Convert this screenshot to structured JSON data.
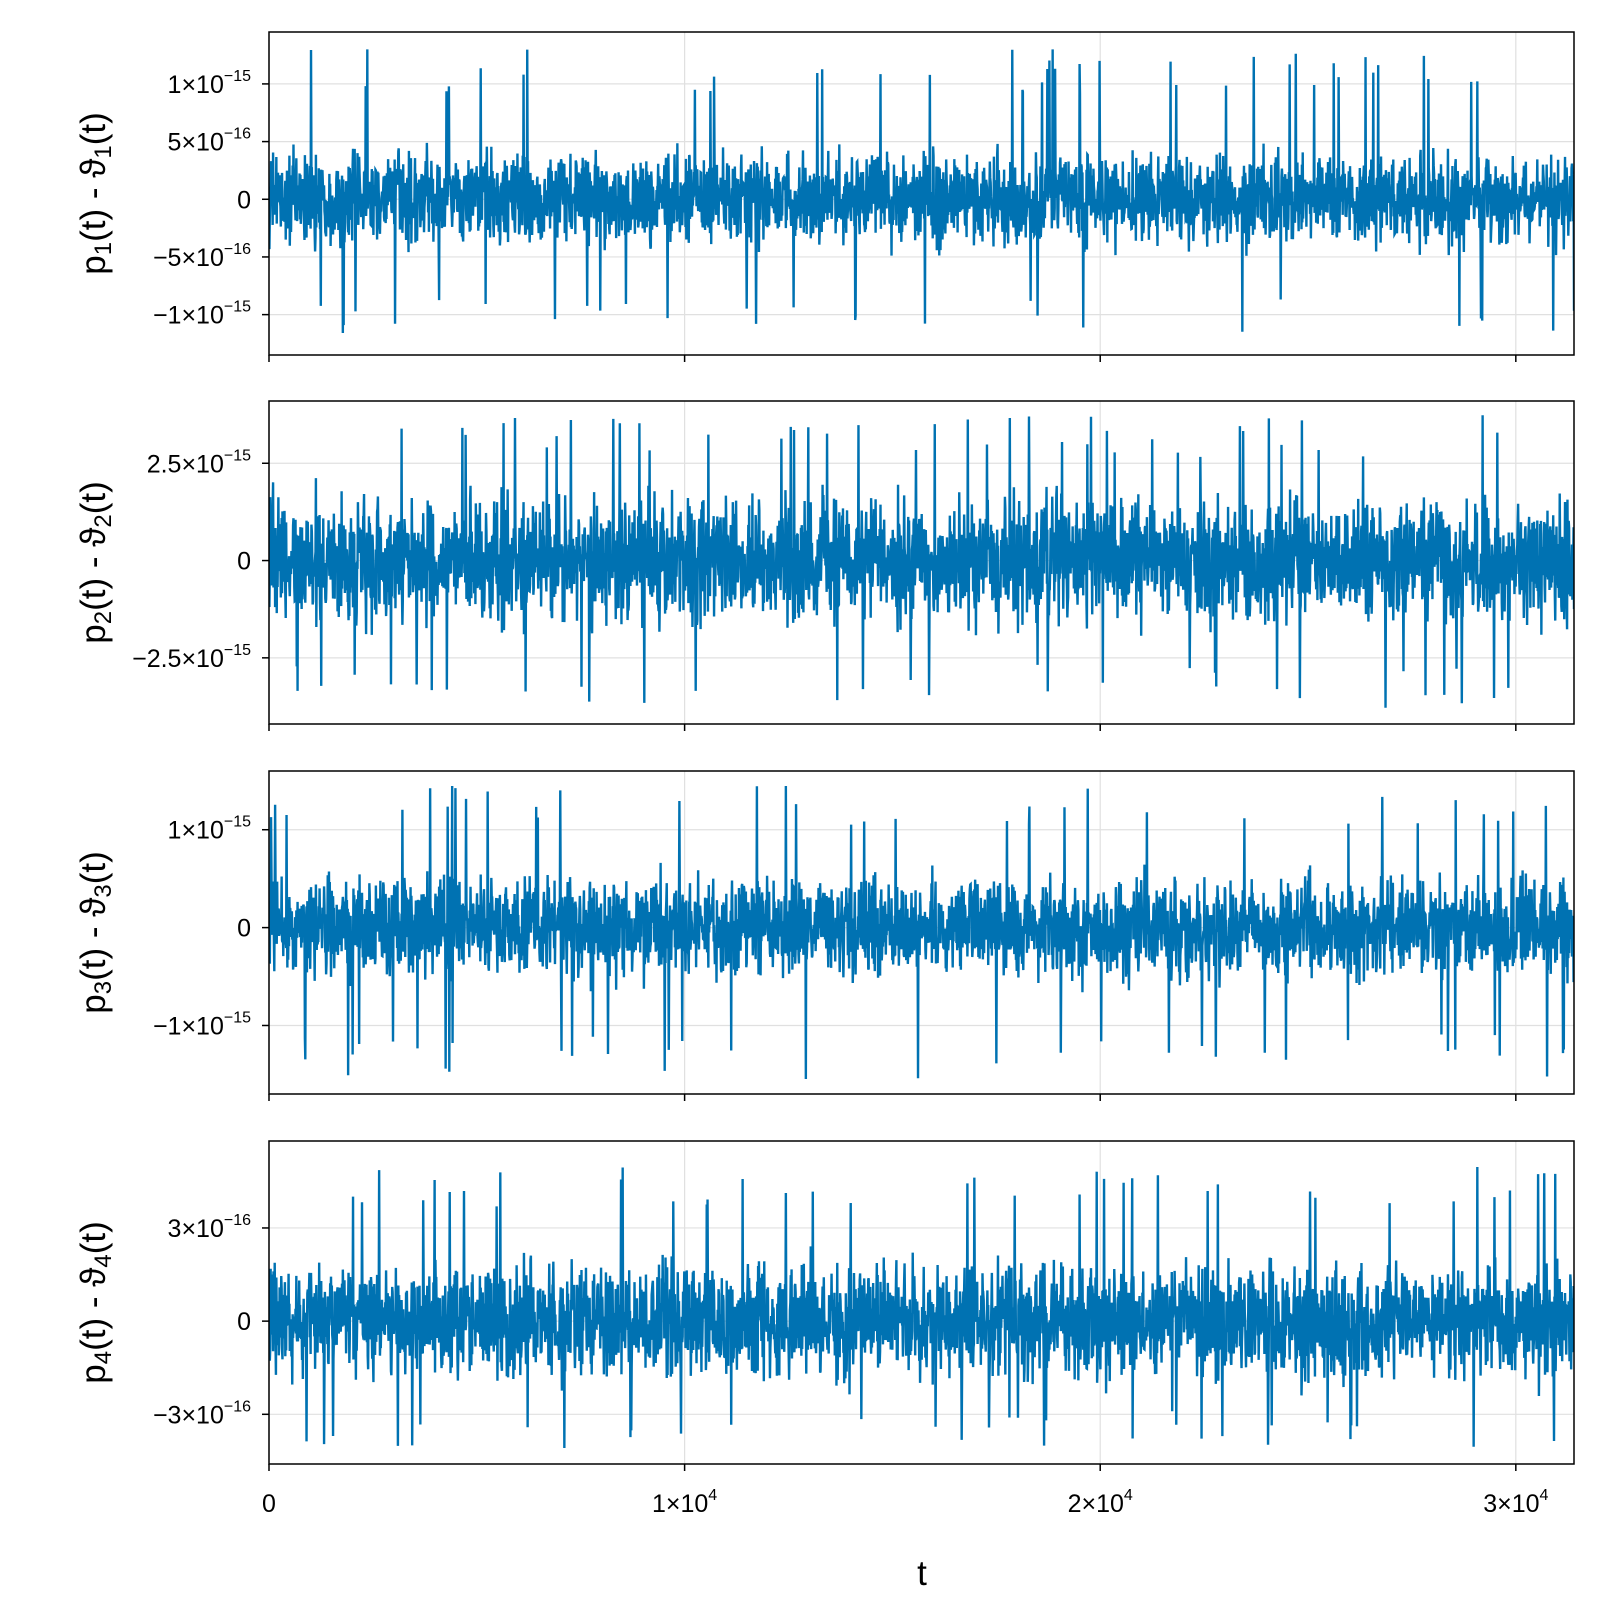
{
  "chart_data": [
    {
      "type": "line",
      "panel": 1,
      "ylabel": {
        "base": "p",
        "sub": "1",
        "mid": "(t) - ϑ",
        "sub2": "1",
        "end": "(t)"
      },
      "xlim": [
        0,
        31400
      ],
      "ylim": [
        -1.35e-15,
        1.45e-15
      ],
      "amplitude": 5e-16,
      "spike_max": 1.3e-15,
      "spike_min": -1.2e-15,
      "yticks": [
        {
          "value": 1e-15,
          "mant": "1×10",
          "exp": "−15"
        },
        {
          "value": 5e-16,
          "mant": "5×10",
          "exp": "−16"
        },
        {
          "value": 0,
          "mant": "0",
          "exp": ""
        },
        {
          "value": -5e-16,
          "mant": "−5×10",
          "exp": "−16"
        },
        {
          "value": -1e-15,
          "mant": "−1×10",
          "exp": "−15"
        }
      ],
      "series": [
        {
          "color": "#0072B2"
        }
      ]
    },
    {
      "type": "line",
      "panel": 2,
      "ylabel": {
        "base": "p",
        "sub": "2",
        "mid": "(t) - ϑ",
        "sub2": "2",
        "end": "(t)"
      },
      "xlim": [
        0,
        31400
      ],
      "ylim": [
        -4.2e-15,
        4.1e-15
      ],
      "amplitude": 2e-15,
      "spike_max": 3.75e-15,
      "spike_min": -3.8e-15,
      "yticks": [
        {
          "value": 2.5e-15,
          "mant": "2.5×10",
          "exp": "−15"
        },
        {
          "value": 0,
          "mant": "0",
          "exp": ""
        },
        {
          "value": -2.5e-15,
          "mant": "−2.5×10",
          "exp": "−15"
        }
      ],
      "series": [
        {
          "color": "#0072B2"
        }
      ]
    },
    {
      "type": "line",
      "panel": 3,
      "ylabel": {
        "base": "p",
        "sub": "3",
        "mid": "(t) - ϑ",
        "sub2": "3",
        "end": "(t)"
      },
      "xlim": [
        0,
        31400
      ],
      "ylim": [
        -1.7e-15,
        1.6e-15
      ],
      "amplitude": 6.5e-16,
      "spike_max": 1.45e-15,
      "spike_min": -1.55e-15,
      "yticks": [
        {
          "value": 1e-15,
          "mant": "1×10",
          "exp": "−15"
        },
        {
          "value": 0,
          "mant": "0",
          "exp": ""
        },
        {
          "value": -1e-15,
          "mant": "−1×10",
          "exp": "−15"
        }
      ],
      "series": [
        {
          "color": "#0072B2"
        }
      ]
    },
    {
      "type": "line",
      "panel": 4,
      "ylabel": {
        "base": "p",
        "sub": "4",
        "mid": "(t) - ϑ",
        "sub2": "4",
        "end": "(t)"
      },
      "xlim": [
        0,
        31400
      ],
      "ylim": [
        -4.6e-16,
        5.8e-16
      ],
      "amplitude": 2.3e-16,
      "spike_max": 5.2e-16,
      "spike_min": -4.1e-16,
      "yticks": [
        {
          "value": 3e-16,
          "mant": "3×10",
          "exp": "−16"
        },
        {
          "value": 0,
          "mant": "0",
          "exp": ""
        },
        {
          "value": -3e-16,
          "mant": "−3×10",
          "exp": "−16"
        }
      ],
      "series": [
        {
          "color": "#0072B2"
        }
      ]
    }
  ],
  "x_axis": {
    "label": "t",
    "ticks": [
      {
        "value": 0,
        "mant": "0",
        "exp": ""
      },
      {
        "value": 10000,
        "mant": "1×10",
        "exp": "4"
      },
      {
        "value": 20000,
        "mant": "2×10",
        "exp": "4"
      },
      {
        "value": 30000,
        "mant": "3×10",
        "exp": "4"
      }
    ]
  }
}
